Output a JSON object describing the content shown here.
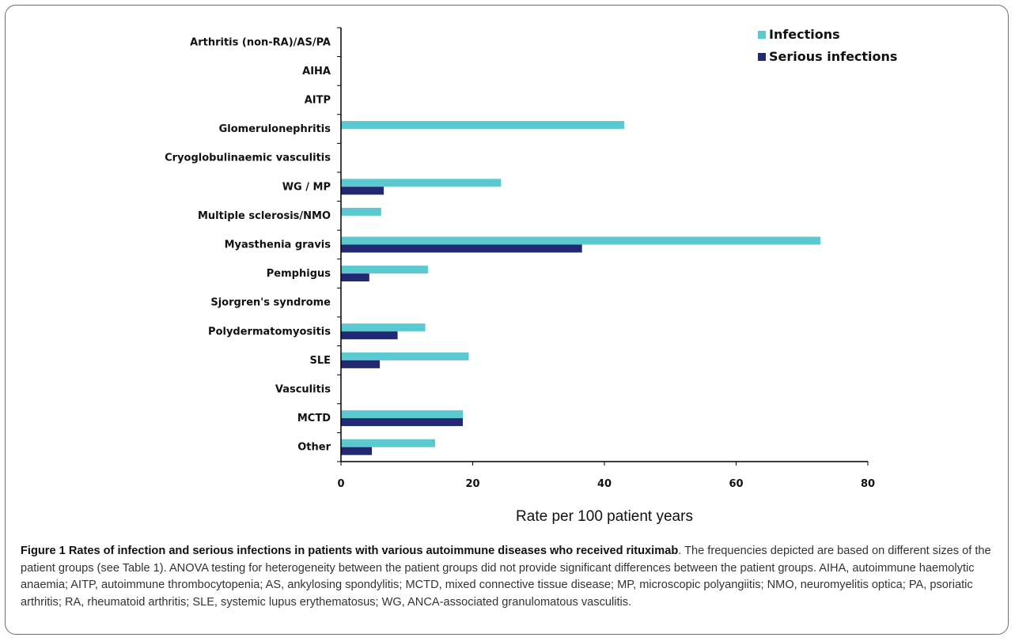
{
  "chart_data": {
    "type": "bar",
    "orientation": "horizontal",
    "categories": [
      "Arthritis (non-RA)/AS/PA",
      "AIHA",
      "AITP",
      "Glomerulonephritis",
      "Cryoglobulinaemic vasculitis",
      "WG / MP",
      "Multiple sclerosis/NMO",
      "Myasthenia gravis",
      "Pemphigus",
      "Sjorgren's syndrome",
      "Polydermatomyositis",
      "SLE",
      "Vasculitis",
      "MCTD",
      "Other"
    ],
    "series": [
      {
        "name": "Infections",
        "color": "#5cc8d0",
        "values": [
          0,
          0,
          0,
          43,
          0,
          24.3,
          6.1,
          72.8,
          13.2,
          0,
          12.8,
          19.4,
          0,
          18.5,
          14.3
        ]
      },
      {
        "name": "Serious infections",
        "color": "#232873",
        "values": [
          0,
          0,
          0,
          0,
          0,
          6.5,
          0,
          36.6,
          4.3,
          0,
          8.6,
          5.9,
          0,
          18.5,
          4.7
        ]
      }
    ],
    "xlabel": "Rate per 100 patient years",
    "ylabel": "",
    "xlim": [
      0,
      80
    ],
    "xticks": [
      "0",
      "20",
      "40",
      "60",
      "80"
    ],
    "grid": false,
    "legend_position": "top-right"
  },
  "caption": {
    "label": "Figure 1",
    "title": "Rates of infection and serious infections in patients with various autoimmune diseases who received rituximab",
    "body": ". The frequencies depicted are based on different sizes of the patient groups (see Table 1). ANOVA testing for heterogeneity between the patient groups did not provide significant differences between the patient groups. AIHA, autoimmune haemolytic anaemia; AITP, autoimmune thrombocytopenia; AS, ankylosing spondylitis; MCTD, mixed connective tissue disease; MP, microscopic polyangiitis; NMO, neuromyelitis optica; PA, psoriatic arthritis; RA, rheumatoid arthritis; SLE, systemic lupus erythematosus; WG, ANCA-associated granulomatous vasculitis."
  }
}
